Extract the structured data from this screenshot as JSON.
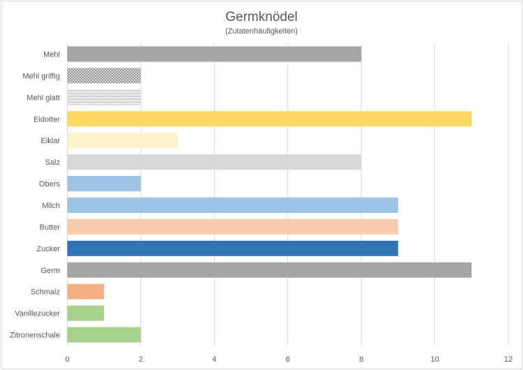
{
  "chart_data": {
    "type": "bar",
    "orientation": "horizontal",
    "title": "Germknödel",
    "subtitle": "(Zutatenhäufigkeiten)",
    "xlabel": "",
    "ylabel": "",
    "xlim": [
      0,
      12
    ],
    "xticks": [
      0,
      2,
      4,
      6,
      8,
      10,
      12
    ],
    "grid": true,
    "legend": "none",
    "categories": [
      "Mehl",
      "Mehl griffig",
      "Mehl glatt",
      "Eidotter",
      "Eiklar",
      "Salz",
      "Obers",
      "Milch",
      "Butter",
      "Zucker",
      "Germ",
      "Schmalz",
      "Vanillezucker",
      "Zitronenschale"
    ],
    "values": [
      8,
      2,
      2,
      11,
      3,
      8,
      2,
      9,
      9,
      9,
      11,
      1,
      1,
      2
    ],
    "colors": [
      "#a5a5a5",
      "pattern-dark",
      "pattern-light",
      "#ffd966",
      "#fff2cc",
      "#d9d9d9",
      "#9dc3e6",
      "#9dc3e6",
      "#f8cbad",
      "#2e75b6",
      "#a5a5a5",
      "#f4b183",
      "#a9d18e",
      "#a9d18e"
    ]
  }
}
